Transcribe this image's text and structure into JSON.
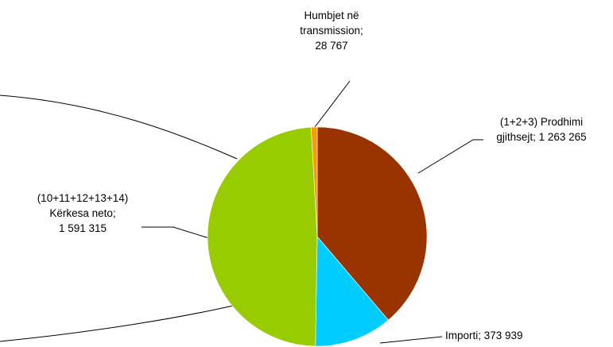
{
  "chart_data": {
    "type": "pie",
    "title": "",
    "colors": [
      "#993300",
      "#00CCFF",
      "#99CC00",
      "#FF9900"
    ],
    "slices": [
      {
        "label_lines": [
          "(1+2+3) Prodhimi",
          "gjithsejt;   1 263 265"
        ],
        "value": 1263265,
        "color": "#993300"
      },
      {
        "label_lines": [
          "Importi;  373 939"
        ],
        "value": 373939,
        "color": "#00CCFF"
      },
      {
        "label_lines": [
          "(10+11+12+13+14)",
          "Kërkesa neto;",
          "1 591 315"
        ],
        "value": 1591315,
        "color": "#99CC00"
      },
      {
        "label_lines": [
          "Humbjet në",
          "transmission;",
          "28 767"
        ],
        "value": 28767,
        "color": "#FF9900"
      }
    ],
    "legend": "none"
  }
}
